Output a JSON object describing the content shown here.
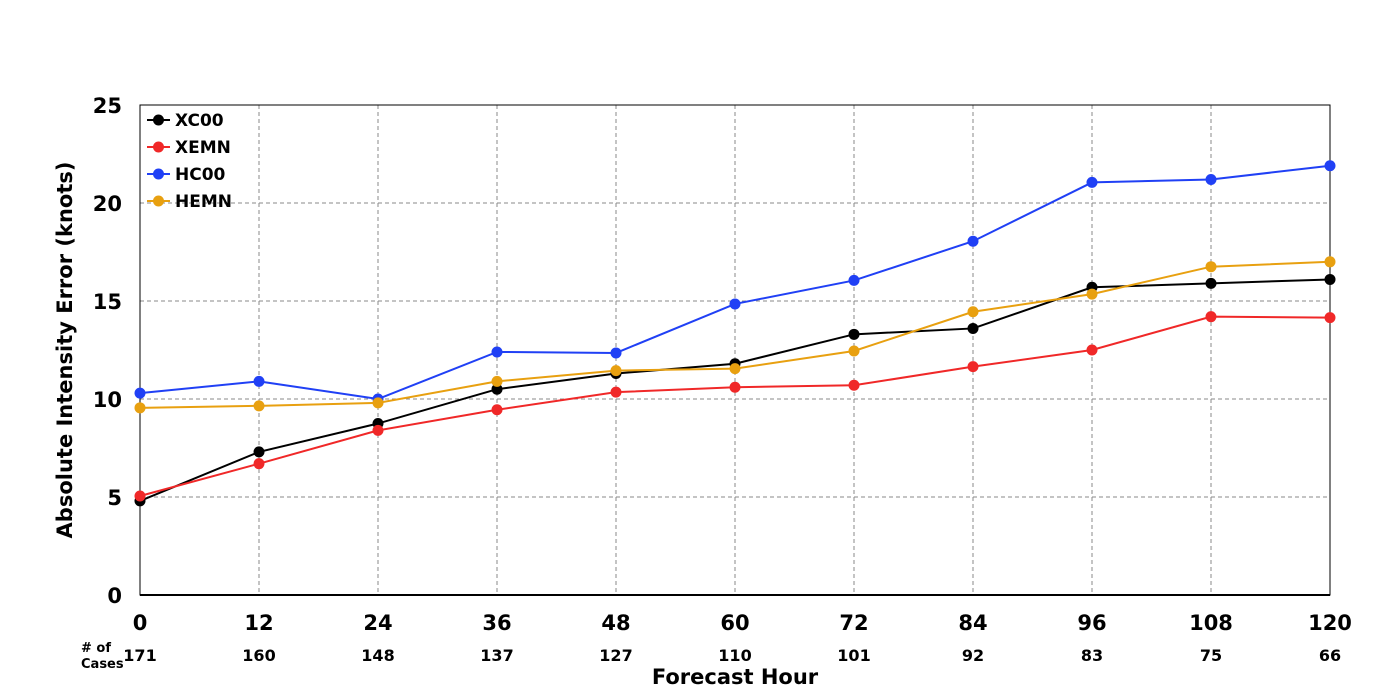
{
  "chart_data": {
    "type": "line",
    "xlabel": "Forecast Hour",
    "ylabel": "Absolute Intensity Error (knots)",
    "x": [
      0,
      12,
      24,
      36,
      48,
      60,
      72,
      84,
      96,
      108,
      120
    ],
    "x_ticks": [
      "0",
      "12",
      "24",
      "36",
      "48",
      "60",
      "72",
      "84",
      "96",
      "108",
      "120"
    ],
    "xlim": [
      0,
      120
    ],
    "ylim": [
      0,
      25
    ],
    "y_ticks": [
      "0",
      "5",
      "10",
      "15",
      "20",
      "25"
    ],
    "grid": true,
    "legend_position": "top-left",
    "cases_header": [
      "# of",
      "Cases"
    ],
    "cases": [
      "171",
      "160",
      "148",
      "137",
      "127",
      "110",
      "101",
      "92",
      "83",
      "75",
      "66"
    ],
    "series": [
      {
        "name": "XC00",
        "color": "#000000",
        "values": [
          4.8,
          7.3,
          8.75,
          10.5,
          11.3,
          11.8,
          13.3,
          13.6,
          15.7,
          15.9,
          16.1
        ]
      },
      {
        "name": "XEMN",
        "color": "#f02828",
        "values": [
          5.05,
          6.7,
          8.4,
          9.45,
          10.35,
          10.6,
          10.7,
          11.65,
          12.5,
          14.2,
          14.15
        ]
      },
      {
        "name": "HC00",
        "color": "#2040f5",
        "values": [
          10.3,
          10.9,
          10.0,
          12.4,
          12.35,
          14.85,
          16.05,
          18.05,
          21.05,
          21.2,
          21.9
        ]
      },
      {
        "name": "HEMN",
        "color": "#e8a010",
        "values": [
          9.55,
          9.65,
          9.8,
          10.9,
          11.45,
          11.55,
          12.45,
          14.45,
          15.35,
          16.75,
          17.0
        ]
      }
    ]
  }
}
